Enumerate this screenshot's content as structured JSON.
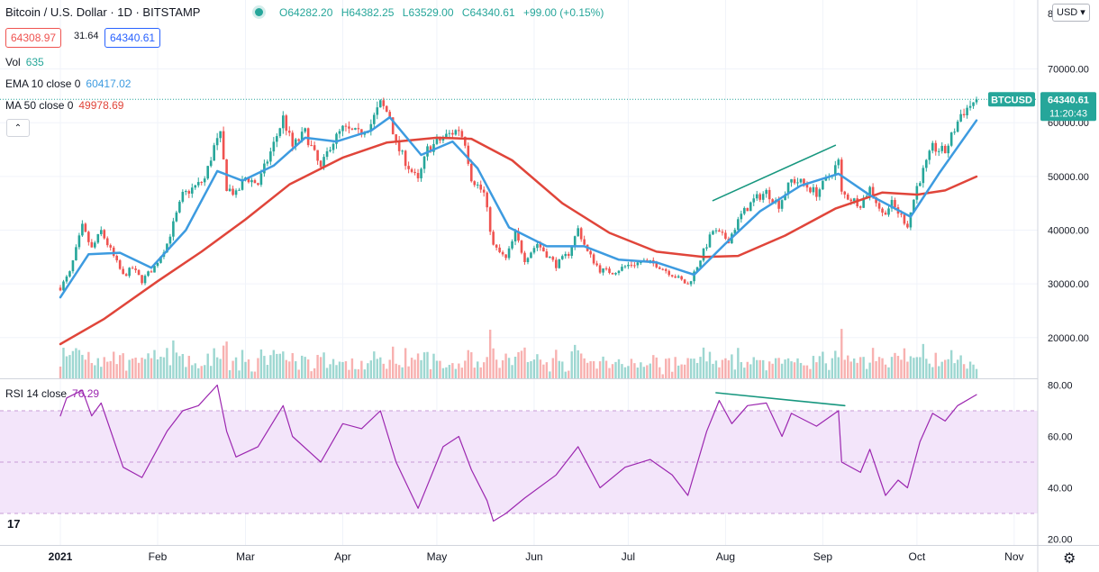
{
  "header": {
    "title": "Bitcoin / U.S. Dollar · 1D · BITSTAMP",
    "ohlc": {
      "open": "O64282.20",
      "high": "H64382.25",
      "low": "L63529.00",
      "close": "C64340.61",
      "change": "+99.00 (+0.15%)"
    },
    "bid": "64308.97",
    "spread": "31.64",
    "ask": "64340.61",
    "currency_button": "USD"
  },
  "legend": {
    "vol": {
      "label": "Vol",
      "value": "635"
    },
    "ema": {
      "label": "EMA 10 close 0",
      "value": "60417.02"
    },
    "ma": {
      "label": "MA 50 close 0",
      "value": "49978.69"
    },
    "rsi": {
      "label": "RSI 14 close",
      "value": "76.29"
    }
  },
  "price_label": {
    "symbol": "BTCUSD",
    "price": "64340.61",
    "countdown": "11:20:43"
  },
  "colors": {
    "up": "#26a69a",
    "down": "#ef5350",
    "ema": "#3d9be0",
    "ma": "#e0453a",
    "rsi_line": "#9c27b0",
    "rsi_band": "#f3e5fa",
    "trendline": "#17977f"
  },
  "chart_data": [
    {
      "type": "line",
      "title": "Bitcoin / U.S. Dollar",
      "x_axis": {
        "ticks": [
          "2021",
          "Feb",
          "Mar",
          "Apr",
          "May",
          "Jun",
          "Jul",
          "Aug",
          "Sep",
          "Oct",
          "Nov"
        ]
      },
      "y_axis": {
        "ticks": [
          20000,
          30000,
          40000,
          50000,
          60000,
          70000
        ],
        "tick_labels": [
          "20000.00",
          "30000.00",
          "40000.00",
          "50000.00",
          "60000.00",
          "70000.00"
        ],
        "range": [
          17000,
          82000
        ],
        "top_partial_label": "8"
      },
      "grid": true,
      "price_path": [
        [
          "2021-01-01",
          29300
        ],
        [
          "2021-01-04",
          32000
        ],
        [
          "2021-01-08",
          40600
        ],
        [
          "2021-01-11",
          36500
        ],
        [
          "2021-01-14",
          39800
        ],
        [
          "2021-01-21",
          31500
        ],
        [
          "2021-01-24",
          32900
        ],
        [
          "2021-01-27",
          30600
        ],
        [
          "2021-01-31",
          33200
        ],
        [
          "2021-02-04",
          37500
        ],
        [
          "2021-02-09",
          46500
        ],
        [
          "2021-02-14",
          48500
        ],
        [
          "2021-02-16",
          49500
        ],
        [
          "2021-02-19",
          55500
        ],
        [
          "2021-02-21",
          57500
        ],
        [
          "2021-02-23",
          48000
        ],
        [
          "2021-02-26",
          46600
        ],
        [
          "2021-03-01",
          49800
        ],
        [
          "2021-03-05",
          48600
        ],
        [
          "2021-03-10",
          56000
        ],
        [
          "2021-03-13",
          60900
        ],
        [
          "2021-03-16",
          55500
        ],
        [
          "2021-03-20",
          58200
        ],
        [
          "2021-03-25",
          51300
        ],
        [
          "2021-03-28",
          55800
        ],
        [
          "2021-04-01",
          58800
        ],
        [
          "2021-04-06",
          57900
        ],
        [
          "2021-04-10",
          59800
        ],
        [
          "2021-04-13",
          63500
        ],
        [
          "2021-04-16",
          61300
        ],
        [
          "2021-04-18",
          55900
        ],
        [
          "2021-04-22",
          51800
        ],
        [
          "2021-04-25",
          49100
        ],
        [
          "2021-04-28",
          55000
        ],
        [
          "2021-05-03",
          57200
        ],
        [
          "2021-05-08",
          58800
        ],
        [
          "2021-05-10",
          56400
        ],
        [
          "2021-05-12",
          49800
        ],
        [
          "2021-05-16",
          46800
        ],
        [
          "2021-05-19",
          37000
        ],
        [
          "2021-05-23",
          34600
        ],
        [
          "2021-05-26",
          39300
        ],
        [
          "2021-05-29",
          34600
        ],
        [
          "2021-06-02",
          37500
        ],
        [
          "2021-06-08",
          33500
        ],
        [
          "2021-06-12",
          35700
        ],
        [
          "2021-06-15",
          40200
        ],
        [
          "2021-06-18",
          35900
        ],
        [
          "2021-06-22",
          32600
        ],
        [
          "2021-06-26",
          32200
        ],
        [
          "2021-07-01",
          33500
        ],
        [
          "2021-07-06",
          34200
        ],
        [
          "2021-07-10",
          33600
        ],
        [
          "2021-07-15",
          31800
        ],
        [
          "2021-07-20",
          29800
        ],
        [
          "2021-07-22",
          32100
        ],
        [
          "2021-07-26",
          37300
        ],
        [
          "2021-07-28",
          39900
        ],
        [
          "2021-08-02",
          38200
        ],
        [
          "2021-08-06",
          42800
        ],
        [
          "2021-08-10",
          45600
        ],
        [
          "2021-08-14",
          47100
        ],
        [
          "2021-08-18",
          44700
        ],
        [
          "2021-08-22",
          49300
        ],
        [
          "2021-08-25",
          48900
        ],
        [
          "2021-08-30",
          46900
        ],
        [
          "2021-09-03",
          50000
        ],
        [
          "2021-09-06",
          52700
        ],
        [
          "2021-09-07",
          46800
        ],
        [
          "2021-09-13",
          44900
        ],
        [
          "2021-09-16",
          47800
        ],
        [
          "2021-09-20",
          43000
        ],
        [
          "2021-09-23",
          44900
        ],
        [
          "2021-09-28",
          41000
        ],
        [
          "2021-10-01",
          48100
        ],
        [
          "2021-10-06",
          55300
        ],
        [
          "2021-10-10",
          54600
        ],
        [
          "2021-10-15",
          61600
        ],
        [
          "2021-10-20",
          64340
        ]
      ]
    },
    {
      "type": "line",
      "title": "EMA 10 close 0",
      "series": [
        {
          "name": "EMA 10 close 0",
          "points": [
            [
              "2021-01-01",
              27500
            ],
            [
              "2021-01-10",
              35500
            ],
            [
              "2021-01-20",
              35800
            ],
            [
              "2021-01-30",
              33000
            ],
            [
              "2021-02-10",
              40000
            ],
            [
              "2021-02-20",
              51000
            ],
            [
              "2021-02-28",
              49200
            ],
            [
              "2021-03-10",
              52000
            ],
            [
              "2021-03-20",
              57200
            ],
            [
              "2021-03-30",
              56500
            ],
            [
              "2021-04-10",
              58500
            ],
            [
              "2021-04-16",
              61000
            ],
            [
              "2021-04-26",
              54000
            ],
            [
              "2021-05-06",
              56500
            ],
            [
              "2021-05-14",
              51500
            ],
            [
              "2021-05-24",
              40500
            ],
            [
              "2021-06-05",
              37000
            ],
            [
              "2021-06-17",
              37000
            ],
            [
              "2021-06-28",
              34500
            ],
            [
              "2021-07-10",
              34000
            ],
            [
              "2021-07-22",
              31700
            ],
            [
              "2021-08-01",
              37500
            ],
            [
              "2021-08-12",
              43500
            ],
            [
              "2021-08-25",
              48300
            ],
            [
              "2021-09-06",
              50500
            ],
            [
              "2021-09-16",
              46500
            ],
            [
              "2021-09-29",
              42500
            ],
            [
              "2021-10-08",
              50500
            ],
            [
              "2021-10-20",
              60417
            ]
          ]
        }
      ]
    },
    {
      "type": "line",
      "title": "MA 50 close 0",
      "series": [
        {
          "name": "MA 50 close 0",
          "points": [
            [
              "2021-01-01",
              18800
            ],
            [
              "2021-01-15",
              23500
            ],
            [
              "2021-02-01",
              30500
            ],
            [
              "2021-02-15",
              36000
            ],
            [
              "2021-03-01",
              42000
            ],
            [
              "2021-03-15",
              48500
            ],
            [
              "2021-04-01",
              53500
            ],
            [
              "2021-04-15",
              56300
            ],
            [
              "2021-05-01",
              57200
            ],
            [
              "2021-05-12",
              57000
            ],
            [
              "2021-05-25",
              53000
            ],
            [
              "2021-06-10",
              45000
            ],
            [
              "2021-06-25",
              39500
            ],
            [
              "2021-07-10",
              36000
            ],
            [
              "2021-07-25",
              35000
            ],
            [
              "2021-08-05",
              35200
            ],
            [
              "2021-08-20",
              39000
            ],
            [
              "2021-09-05",
              44000
            ],
            [
              "2021-09-20",
              47000
            ],
            [
              "2021-10-01",
              46600
            ],
            [
              "2021-10-10",
              47400
            ],
            [
              "2021-10-20",
              49978
            ]
          ]
        }
      ]
    },
    {
      "type": "line",
      "title": "RSI 14 close",
      "y_axis": {
        "ticks": [
          20,
          40,
          60,
          80
        ],
        "tick_labels": [
          "20.00",
          "40.00",
          "60.00",
          "80.00"
        ],
        "range": [
          18,
          82
        ],
        "bands": [
          30,
          70
        ]
      },
      "series": [
        {
          "name": "RSI 14 close",
          "points": [
            [
              "2021-01-01",
              68
            ],
            [
              "2021-01-03",
              75
            ],
            [
              "2021-01-08",
              78
            ],
            [
              "2021-01-11",
              68
            ],
            [
              "2021-01-14",
              73
            ],
            [
              "2021-01-21",
              48
            ],
            [
              "2021-01-27",
              44
            ],
            [
              "2021-02-04",
              62
            ],
            [
              "2021-02-09",
              70
            ],
            [
              "2021-02-14",
              72
            ],
            [
              "2021-02-20",
              80
            ],
            [
              "2021-02-23",
              62
            ],
            [
              "2021-02-26",
              52
            ],
            [
              "2021-03-05",
              56
            ],
            [
              "2021-03-13",
              72
            ],
            [
              "2021-03-16",
              60
            ],
            [
              "2021-03-25",
              50
            ],
            [
              "2021-04-01",
              65
            ],
            [
              "2021-04-07",
              63
            ],
            [
              "2021-04-13",
              70
            ],
            [
              "2021-04-18",
              50
            ],
            [
              "2021-04-25",
              32
            ],
            [
              "2021-05-03",
              56
            ],
            [
              "2021-05-08",
              60
            ],
            [
              "2021-05-12",
              47
            ],
            [
              "2021-05-17",
              35
            ],
            [
              "2021-05-19",
              27
            ],
            [
              "2021-05-23",
              30
            ],
            [
              "2021-05-29",
              36
            ],
            [
              "2021-06-08",
              45
            ],
            [
              "2021-06-15",
              56
            ],
            [
              "2021-06-22",
              40
            ],
            [
              "2021-06-30",
              48
            ],
            [
              "2021-07-08",
              51
            ],
            [
              "2021-07-15",
              45
            ],
            [
              "2021-07-20",
              37
            ],
            [
              "2021-07-26",
              62
            ],
            [
              "2021-07-30",
              74
            ],
            [
              "2021-08-03",
              65
            ],
            [
              "2021-08-08",
              72
            ],
            [
              "2021-08-14",
              73
            ],
            [
              "2021-08-19",
              60
            ],
            [
              "2021-08-22",
              69
            ],
            [
              "2021-08-30",
              64
            ],
            [
              "2021-09-06",
              70
            ],
            [
              "2021-09-07",
              50
            ],
            [
              "2021-09-13",
              46
            ],
            [
              "2021-09-16",
              55
            ],
            [
              "2021-09-21",
              37
            ],
            [
              "2021-09-25",
              43
            ],
            [
              "2021-09-28",
              40
            ],
            [
              "2021-10-02",
              58
            ],
            [
              "2021-10-06",
              69
            ],
            [
              "2021-10-10",
              66
            ],
            [
              "2021-10-14",
              72
            ],
            [
              "2021-10-20",
              76.29
            ]
          ]
        }
      ]
    }
  ],
  "annotations": {
    "price_trendline": [
      [
        "2021-07-28",
        45500
      ],
      [
        "2021-09-05",
        55800
      ]
    ],
    "rsi_trendline": [
      [
        "2021-07-29",
        77
      ],
      [
        "2021-09-08",
        72
      ]
    ]
  }
}
